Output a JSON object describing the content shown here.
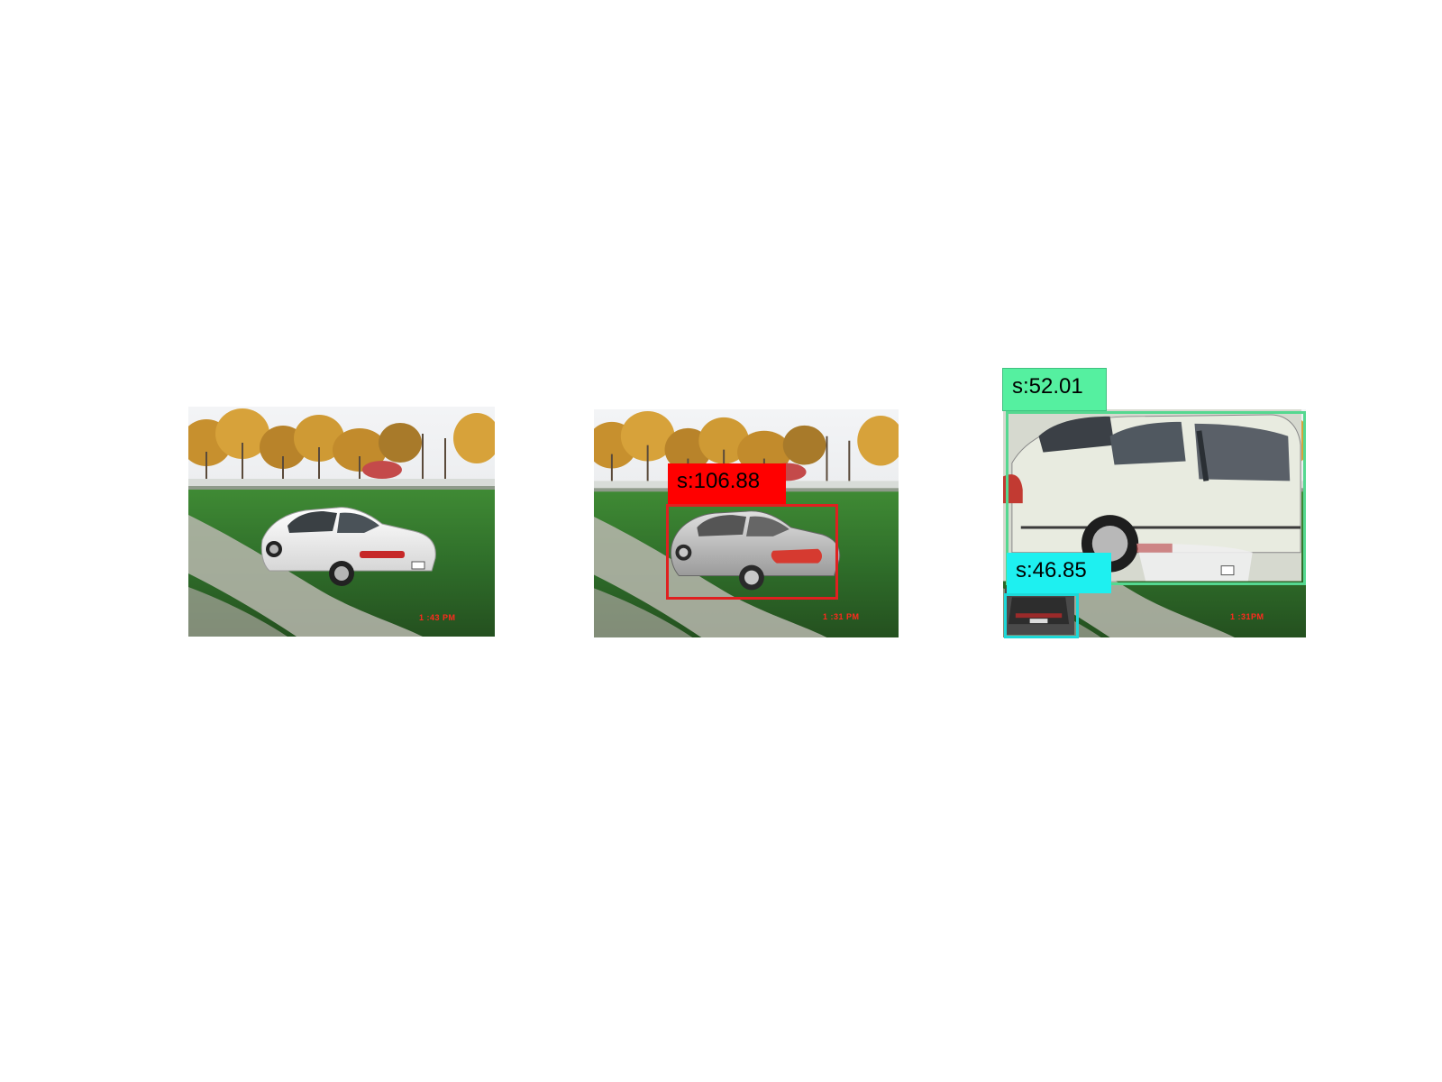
{
  "panels": [
    {
      "name": "original-photo",
      "timestamp": "1 :43 PM",
      "detections": []
    },
    {
      "name": "detection-result-1",
      "timestamp": "1 :31 PM",
      "detections": [
        {
          "label": "s:106.88",
          "color": "#ff0000"
        }
      ]
    },
    {
      "name": "detection-result-2",
      "timestamp": "1 :31PM",
      "detections": [
        {
          "label": "s:52.01",
          "color": "#55f0a0"
        },
        {
          "label": "s:46.85",
          "color": "#1ef0f0"
        }
      ]
    }
  ],
  "colors": {
    "sky": "#eef0f2",
    "foliage": "#c9902e",
    "grass": "#2f6e2a",
    "gravel": "#b9b7ae",
    "car": "#f2f2f2"
  }
}
